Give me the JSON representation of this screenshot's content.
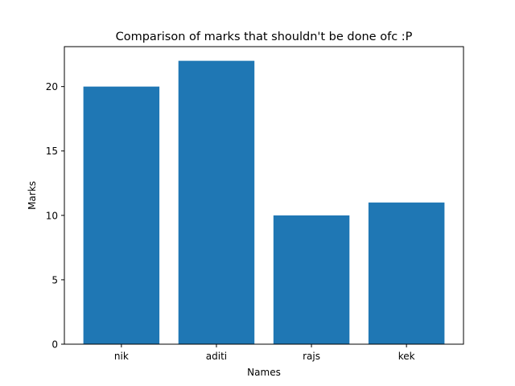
{
  "chart_data": {
    "type": "bar",
    "title": "Comparison of marks that shouldn't be done ofc :P",
    "xlabel": "Names",
    "ylabel": "Marks",
    "categories": [
      "nik",
      "aditi",
      "rajs",
      "kek"
    ],
    "values": [
      20,
      22,
      10,
      11
    ],
    "ylim": [
      0,
      23.1
    ],
    "yticks": [
      0,
      5,
      10,
      15,
      20
    ],
    "bar_color": "#1f77b4",
    "grid": false,
    "legend": "none"
  }
}
